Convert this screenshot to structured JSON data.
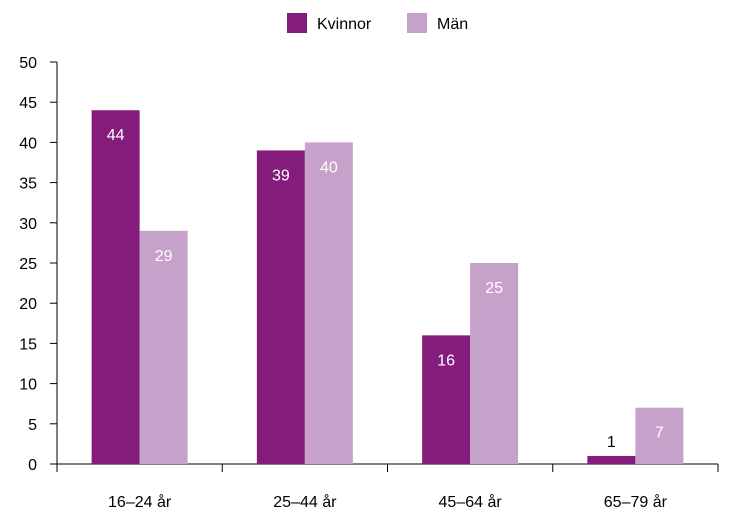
{
  "chart_data": {
    "type": "bar",
    "title": "",
    "xlabel": "",
    "ylabel": "",
    "categories": [
      "16–24 år",
      "25–44 år",
      "45–64 år",
      "65–79 år"
    ],
    "series": [
      {
        "name": "Kvinnor",
        "values": [
          44,
          39,
          16,
          1
        ],
        "color": "#841c7c"
      },
      {
        "name": "Män",
        "values": [
          29,
          40,
          25,
          7
        ],
        "color": "#c6a1c9"
      }
    ],
    "ylim": [
      0,
      50
    ],
    "yticks": [
      0,
      5,
      10,
      15,
      20,
      25,
      30,
      35,
      40,
      45,
      50
    ],
    "grid": false,
    "legend_position": "top-center",
    "data_labels": true,
    "label_colors": {
      "inside": "#ffffff",
      "outside": "#000000"
    }
  }
}
